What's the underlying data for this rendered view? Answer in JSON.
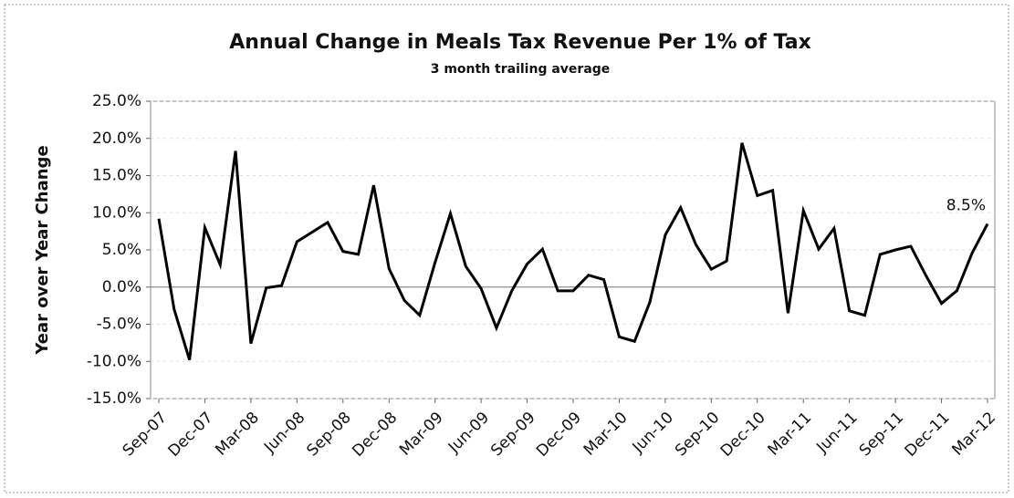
{
  "chart_data": {
    "type": "line",
    "title": "Annual Change in Meals Tax Revenue Per 1% of Tax",
    "subtitle": "3 month trailing average",
    "y_label": "Year over Year Change",
    "categories": [
      "Sep-07",
      null,
      null,
      "Dec-07",
      null,
      null,
      "Mar-08",
      null,
      null,
      "Jun-08",
      null,
      null,
      "Sep-08",
      null,
      null,
      "Dec-08",
      null,
      null,
      "Mar-09",
      null,
      null,
      "Jun-09",
      null,
      null,
      "Sep-09",
      null,
      null,
      "Dec-09",
      null,
      null,
      "Mar-10",
      null,
      null,
      "Jun-10",
      null,
      null,
      "Sep-10",
      null,
      null,
      "Dec-10",
      null,
      null,
      "Mar-11",
      null,
      null,
      "Jun-11",
      null,
      null,
      "Sep-11",
      null,
      null,
      "Dec-11",
      null,
      null,
      "Mar-12"
    ],
    "values": [
      9.2,
      -3,
      -9.8,
      8.0,
      3.0,
      18.3,
      -7.6,
      -0.1,
      0.2,
      6.1,
      7.4,
      8.7,
      4.8,
      4.4,
      13.7,
      2.5,
      -1.8,
      -3.8,
      3.3,
      9.9,
      2.8,
      -0.2,
      -5.5,
      -0.5,
      3.1,
      5.1,
      -0.5,
      -0.5,
      1.6,
      1.0,
      -6.7,
      -7.3,
      -2.0,
      7.0,
      10.7,
      5.7,
      2.4,
      3.5,
      19.4,
      12.3,
      13.0,
      -3.5,
      10.3,
      5.1,
      7.9,
      -3.2,
      -3.8,
      4.4,
      5.0,
      5.5,
      1.5,
      -2.2,
      -0.5,
      4.6,
      8.5
    ],
    "value_labels": [
      null,
      null,
      null,
      null,
      null,
      null,
      null,
      null,
      null,
      null,
      null,
      null,
      null,
      null,
      null,
      null,
      null,
      null,
      null,
      null,
      null,
      null,
      null,
      null,
      null,
      null,
      null,
      null,
      null,
      null,
      null,
      null,
      null,
      null,
      null,
      null,
      null,
      null,
      null,
      null,
      null,
      null,
      null,
      null,
      null,
      null,
      null,
      null,
      null,
      null,
      null,
      null,
      null,
      null,
      "8.5%"
    ],
    "color": "#000000",
    "ylim": [
      -15,
      25
    ],
    "yticks": [
      {
        "value": -15,
        "label": "-15.0%"
      },
      {
        "value": -10,
        "label": "-10.0%"
      },
      {
        "value": -5,
        "label": "-5.0%"
      },
      {
        "value": 0,
        "label": "0.0%"
      },
      {
        "value": 5,
        "label": "5.0%"
      },
      {
        "value": 10,
        "label": "10.0%"
      },
      {
        "value": 15,
        "label": "15.0%"
      },
      {
        "value": 20,
        "label": "20.0%"
      },
      {
        "value": 25,
        "label": "25.0%"
      }
    ],
    "grid": true
  }
}
